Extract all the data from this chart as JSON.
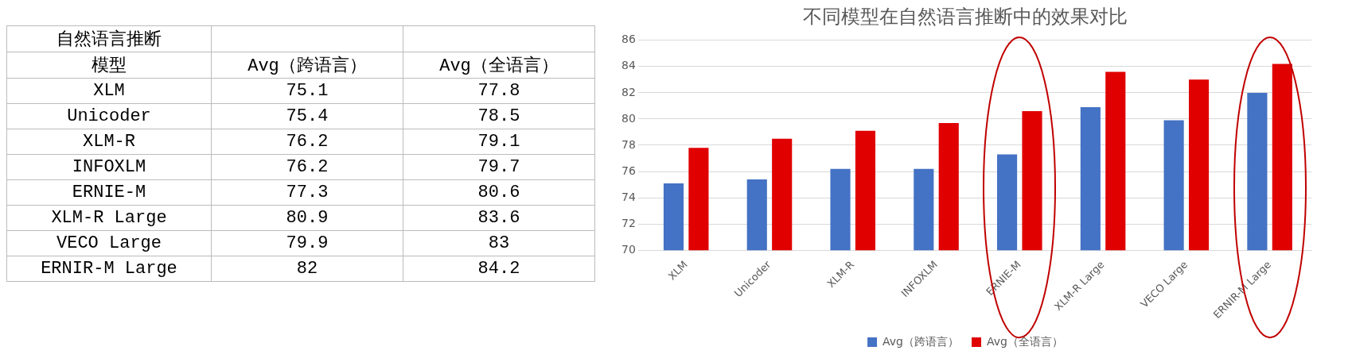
{
  "chart_data": [
    {
      "type": "heatmap",
      "annotations": [
        "自然语言推断",
        "模型"
      ],
      "categories": [
        "Avg（跨语言）",
        "Avg（全语言）"
      ],
      "y_categories": [
        "XLM",
        "Unicoder",
        "XLM-R",
        "INFOXLM",
        "ERNIE-M",
        "XLM-R Large",
        "VECO Large",
        "ERNIR-M Large"
      ],
      "cells": [
        [
          75.1,
          77.8
        ],
        [
          75.4,
          78.5
        ],
        [
          76.2,
          79.1
        ],
        [
          76.2,
          79.7
        ],
        [
          77.3,
          80.6
        ],
        [
          80.9,
          83.6
        ],
        [
          79.9,
          83
        ],
        [
          82,
          84.2
        ]
      ],
      "data_labels": true
    },
    {
      "type": "bar",
      "title": "不同模型在自然语言推断中的效果对比",
      "categories": [
        "XLM",
        "Unicoder",
        "XLM-R",
        "INFOXLM",
        "ERNIE-M",
        "XLM-R Large",
        "VECO Large",
        "ERNIR-M Large"
      ],
      "series": [
        {
          "name": "Avg（跨语言）",
          "color": "#4472c4",
          "values": [
            75.1,
            75.4,
            76.2,
            76.2,
            77.3,
            80.9,
            79.9,
            82
          ]
        },
        {
          "name": "Avg（全语言）",
          "color": "#e00000",
          "values": [
            77.8,
            78.5,
            79.1,
            79.7,
            80.6,
            83.6,
            83,
            84.2
          ]
        }
      ],
      "ylim": [
        70,
        86
      ],
      "yticks": [
        70,
        72,
        74,
        76,
        78,
        80,
        82,
        84,
        86
      ],
      "grid": "y",
      "legend": "bottom"
    }
  ]
}
